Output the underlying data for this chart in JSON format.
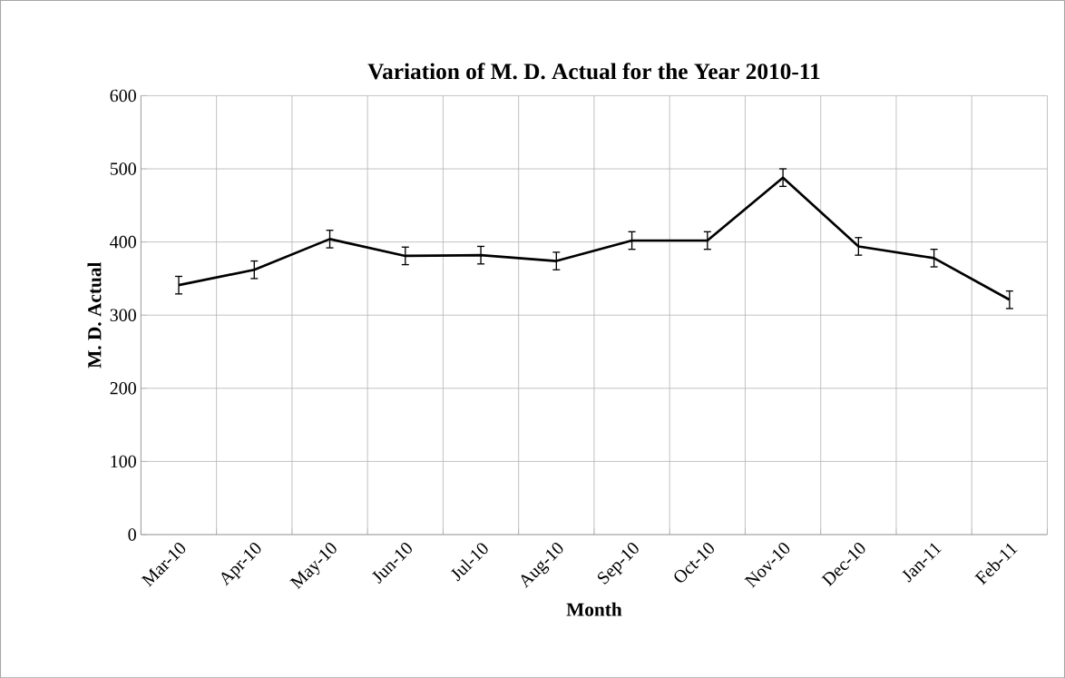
{
  "chart_data": {
    "type": "line",
    "title": "Variation of M. D. Actual for the Year 2010-11",
    "xlabel": "Month",
    "ylabel": "M. D. Actual",
    "categories": [
      "Mar-10",
      "Apr-10",
      "May-10",
      "Jun-10",
      "Jul-10",
      "Aug-10",
      "Sep-10",
      "Oct-10",
      "Nov-10",
      "Dec-10",
      "Jan-11",
      "Feb-11"
    ],
    "values": [
      341,
      362,
      404,
      381,
      382,
      374,
      402,
      402,
      488,
      394,
      378,
      321
    ],
    "errors": [
      12,
      12,
      12,
      12,
      12,
      12,
      12,
      12,
      12,
      12,
      12,
      12
    ],
    "color": "#000000",
    "ylim": [
      0,
      600
    ],
    "yticks": [
      0,
      100,
      200,
      300,
      400,
      500,
      600
    ],
    "grid": true,
    "marker": "none",
    "line_style": "solid"
  }
}
